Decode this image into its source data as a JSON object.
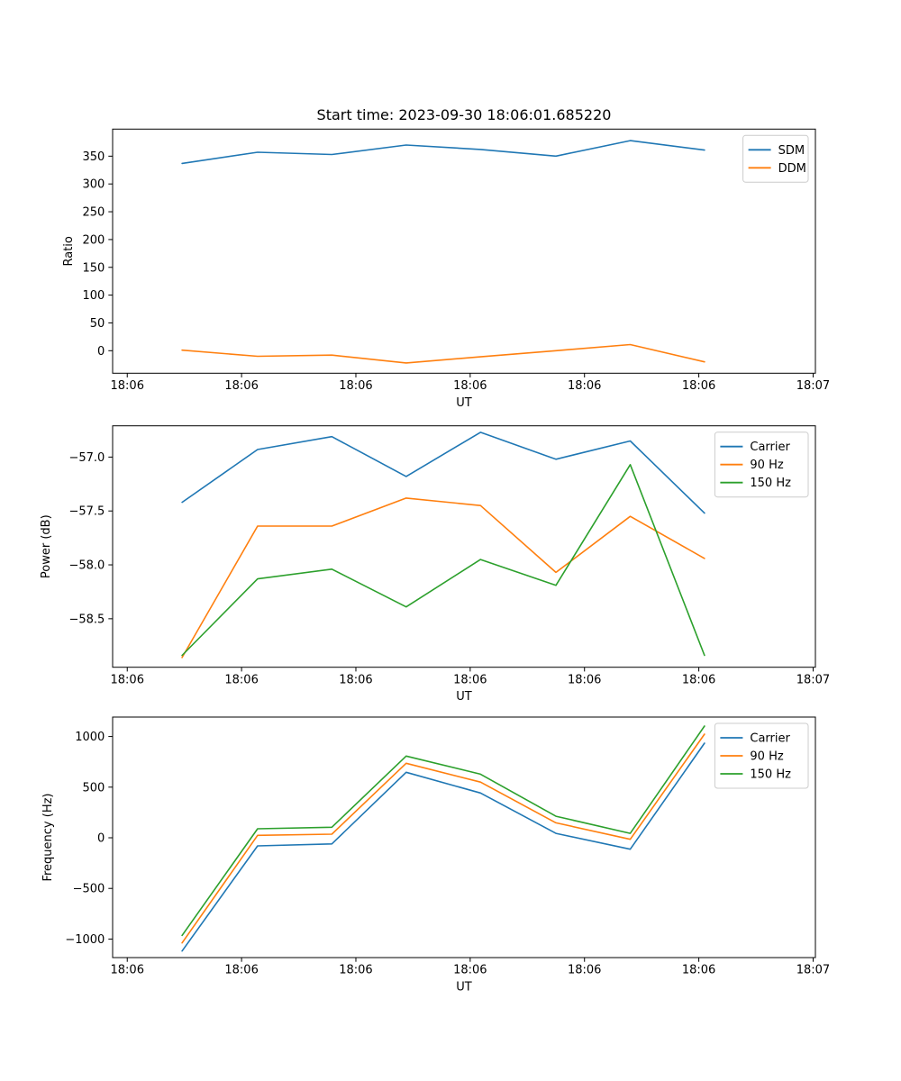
{
  "figure_title": "Start time: 2023-09-30 18:06:01.685220",
  "x_axis": {
    "label": "UT",
    "tick_labels": [
      "18:06",
      "18:06",
      "18:06",
      "18:06",
      "18:06",
      "18:06",
      "18:07"
    ],
    "tick_seconds_after_18_06_00": [
      0,
      10,
      20,
      30,
      40,
      50,
      60
    ],
    "xlim_seconds": [
      -1.28,
      60.2
    ]
  },
  "sample_times_seconds_after_18_06_00": [
    4.8,
    11.4,
    17.9,
    24.4,
    30.9,
    37.5,
    44.0,
    50.5
  ],
  "colors": {
    "blue": "#1f77b4",
    "orange": "#ff7f0e",
    "green": "#2ca02c",
    "axis": "#000000",
    "legend_border": "#cccccc"
  },
  "chart_data": [
    {
      "type": "line",
      "title": "Start time: 2023-09-30 18:06:01.685220",
      "xlabel": "UT",
      "ylabel": "Ratio",
      "grid": false,
      "legend_position": "upper right",
      "ylim": [
        -40.5,
        398.7
      ],
      "y_tick_values": [
        0,
        50,
        100,
        150,
        200,
        250,
        300,
        350
      ],
      "y_tick_labels": [
        "0",
        "50",
        "100",
        "150",
        "200",
        "250",
        "300",
        "350"
      ],
      "series": [
        {
          "name": "SDM",
          "color": "#1f77b4",
          "values": [
            337,
            357,
            353,
            370,
            362,
            350,
            378,
            361
          ]
        },
        {
          "name": "DDM",
          "color": "#ff7f0e",
          "values": [
            1,
            -10,
            -8,
            -22,
            -11,
            0,
            11,
            -20
          ]
        }
      ]
    },
    {
      "type": "line",
      "title": "",
      "xlabel": "UT",
      "ylabel": "Power (dB)",
      "grid": false,
      "legend_position": "upper right",
      "ylim": [
        -58.95,
        -56.71
      ],
      "y_tick_values": [
        -57.0,
        -57.5,
        -58.0,
        -58.5
      ],
      "y_tick_labels": [
        "−57.0",
        "−57.5",
        "−58.0",
        "−58.5"
      ],
      "series": [
        {
          "name": "Carrier",
          "color": "#1f77b4",
          "values": [
            -57.42,
            -56.93,
            -56.81,
            -57.18,
            -56.77,
            -57.02,
            -56.85,
            -57.52
          ]
        },
        {
          "name": "90 Hz",
          "color": "#ff7f0e",
          "values": [
            -58.86,
            -57.64,
            -57.64,
            -57.38,
            -57.45,
            -58.07,
            -57.55,
            -57.94
          ]
        },
        {
          "name": "150 Hz",
          "color": "#2ca02c",
          "values": [
            -58.84,
            -58.13,
            -58.04,
            -58.39,
            -57.95,
            -58.19,
            -57.07,
            -58.84
          ]
        }
      ]
    },
    {
      "type": "line",
      "title": "",
      "xlabel": "UT",
      "ylabel": "Frequency (Hz)",
      "grid": false,
      "legend_position": "upper right",
      "ylim": [
        -1183,
        1192
      ],
      "y_tick_values": [
        1000,
        500,
        0,
        -500,
        -1000
      ],
      "y_tick_labels": [
        "1000",
        "500",
        "0",
        "−500",
        "−1000"
      ],
      "series": [
        {
          "name": "Carrier",
          "color": "#1f77b4",
          "values": [
            -1118,
            -80,
            -60,
            647,
            442,
            44,
            -113,
            934
          ]
        },
        {
          "name": "90 Hz",
          "color": "#ff7f0e",
          "values": [
            -1038,
            24,
            36,
            736,
            550,
            148,
            -15,
            1023
          ]
        },
        {
          "name": "150 Hz",
          "color": "#2ca02c",
          "values": [
            -964,
            89,
            104,
            807,
            628,
            213,
            44,
            1103
          ]
        }
      ]
    }
  ]
}
